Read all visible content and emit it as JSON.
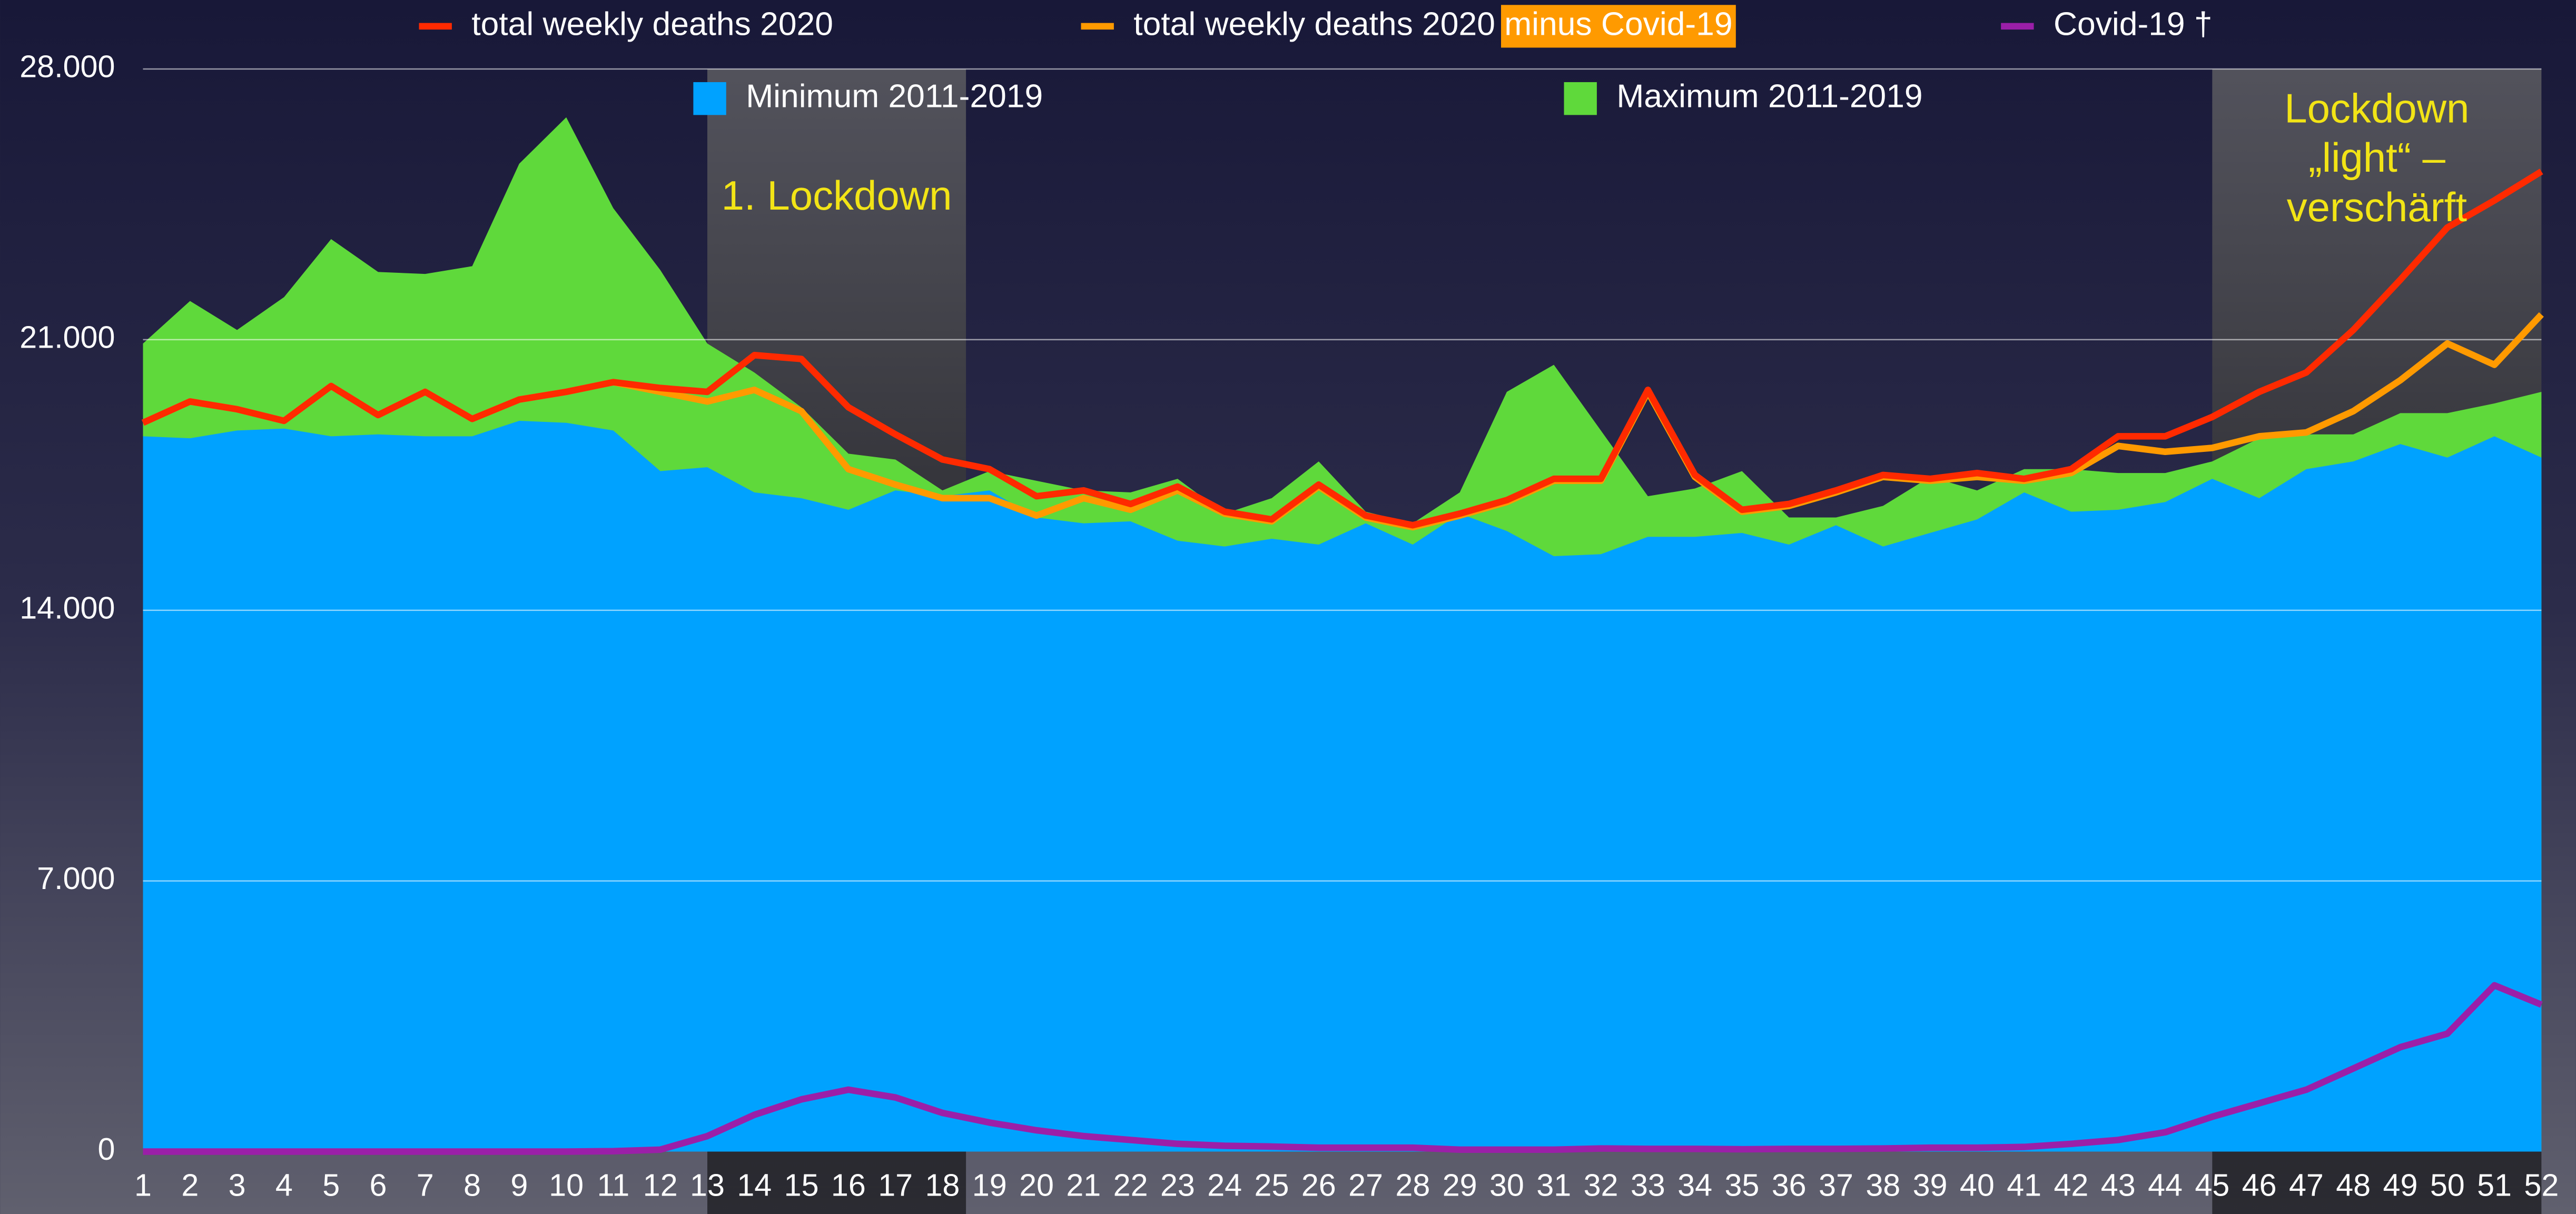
{
  "chart_data": {
    "type": "area_line",
    "x": [
      1,
      2,
      3,
      4,
      5,
      6,
      7,
      8,
      9,
      10,
      11,
      12,
      13,
      14,
      15,
      16,
      17,
      18,
      19,
      20,
      21,
      22,
      23,
      24,
      25,
      26,
      27,
      28,
      29,
      30,
      31,
      32,
      33,
      34,
      35,
      36,
      37,
      38,
      39,
      40,
      41,
      42,
      43,
      44,
      45,
      46,
      47,
      48,
      49,
      50,
      51,
      52
    ],
    "xlim": [
      1,
      52
    ],
    "xticks": [
      1,
      2,
      3,
      4,
      5,
      6,
      7,
      8,
      9,
      10,
      11,
      12,
      13,
      14,
      15,
      16,
      17,
      18,
      19,
      20,
      21,
      22,
      23,
      24,
      25,
      26,
      27,
      28,
      29,
      30,
      31,
      32,
      33,
      34,
      35,
      36,
      37,
      38,
      39,
      40,
      41,
      42,
      43,
      44,
      45,
      46,
      47,
      48,
      49,
      50,
      51,
      52
    ],
    "ylim": [
      0,
      28000
    ],
    "yticks": [
      0,
      {
        "value": 7000,
        "label": "7.000"
      },
      {
        "value": 14000,
        "label": "14.000"
      },
      {
        "value": 21000,
        "label": "21.000"
      },
      {
        "value": 28000,
        "label": "28.000"
      }
    ],
    "grid": true,
    "areas": [
      {
        "name": "Maximum 2011-2019",
        "color": "#5fd93b",
        "values": [
          20900,
          22000,
          21250,
          22100,
          23600,
          22750,
          22700,
          22900,
          25550,
          26750,
          24400,
          22800,
          20900,
          20150,
          19250,
          18050,
          17900,
          17100,
          17600,
          17350,
          17100,
          17050,
          17400,
          16500,
          16900,
          17850,
          16550,
          16250,
          17050,
          19650,
          20350,
          18650,
          16950,
          17150,
          17600,
          16400,
          16400,
          16700,
          17450,
          17100,
          17650,
          17650,
          17550,
          17550,
          17850,
          18450,
          18550,
          18550,
          19100,
          19100,
          19350,
          19650
        ]
      },
      {
        "name": "Minimum 2011-2019",
        "color": "#00a2ff",
        "values": [
          18500,
          18450,
          18650,
          18700,
          18500,
          18550,
          18500,
          18500,
          18900,
          18850,
          18650,
          17600,
          17700,
          17050,
          16900,
          16600,
          17100,
          16950,
          17100,
          16400,
          16250,
          16300,
          15800,
          15650,
          15850,
          15700,
          16250,
          15700,
          16500,
          16050,
          15400,
          15450,
          15900,
          15900,
          16000,
          15700,
          16200,
          15650,
          16000,
          16350,
          17050,
          16550,
          16600,
          16800,
          17400,
          16900,
          17650,
          17850,
          18300,
          17950,
          18500,
          17950
        ]
      }
    ],
    "series": [
      {
        "name": "total weekly deaths 2020 minus Covid-19",
        "highlight": "minus Covid-19",
        "color": "#ff9a00",
        "values": [
          18850,
          19400,
          19200,
          18900,
          19800,
          19050,
          19650,
          18950,
          19450,
          19650,
          19900,
          19650,
          19400,
          19700,
          19150,
          17650,
          17250,
          16900,
          16900,
          16450,
          16900,
          16600,
          17100,
          16500,
          16300,
          17200,
          16400,
          16150,
          16450,
          16800,
          17350,
          17350,
          19650,
          17450,
          16550,
          16700,
          17050,
          17450,
          17350,
          17450,
          17350,
          17550,
          18250,
          18100,
          18200,
          18500,
          18600,
          19150,
          19950,
          20900,
          20350,
          21650
        ]
      },
      {
        "name": "total weekly deaths 2020",
        "color": "#ff2a00",
        "values": [
          18850,
          19400,
          19200,
          18900,
          19800,
          19050,
          19650,
          18950,
          19450,
          19650,
          19900,
          19750,
          19650,
          20600,
          20500,
          19250,
          18550,
          17900,
          17650,
          16950,
          17100,
          16750,
          17200,
          16550,
          16350,
          17250,
          16450,
          16200,
          16500,
          16850,
          17400,
          17400,
          19700,
          17500,
          16600,
          16750,
          17100,
          17500,
          17400,
          17550,
          17400,
          17650,
          18500,
          18500,
          19000,
          19650,
          20150,
          21250,
          22550,
          23900,
          24600,
          25350
        ]
      },
      {
        "name": "Covid-19 †",
        "color": "#9b1fa8",
        "values": [
          0,
          0,
          0,
          0,
          0,
          0,
          0,
          0,
          0,
          0,
          10,
          50,
          400,
          950,
          1350,
          1600,
          1400,
          1000,
          750,
          550,
          400,
          300,
          200,
          150,
          130,
          100,
          100,
          100,
          50,
          50,
          50,
          80,
          70,
          70,
          60,
          70,
          70,
          80,
          100,
          100,
          120,
          200,
          300,
          500,
          900,
          1250,
          1600,
          2150,
          2700,
          3050,
          4300,
          3800
        ]
      }
    ],
    "annotations": [
      {
        "lines": [
          "1. Lockdown"
        ],
        "x": [
          13,
          18.5
        ]
      },
      {
        "lines": [
          "Lockdown",
          "„light“ –",
          "verschärft"
        ],
        "x": [
          45,
          52
        ]
      }
    ]
  }
}
